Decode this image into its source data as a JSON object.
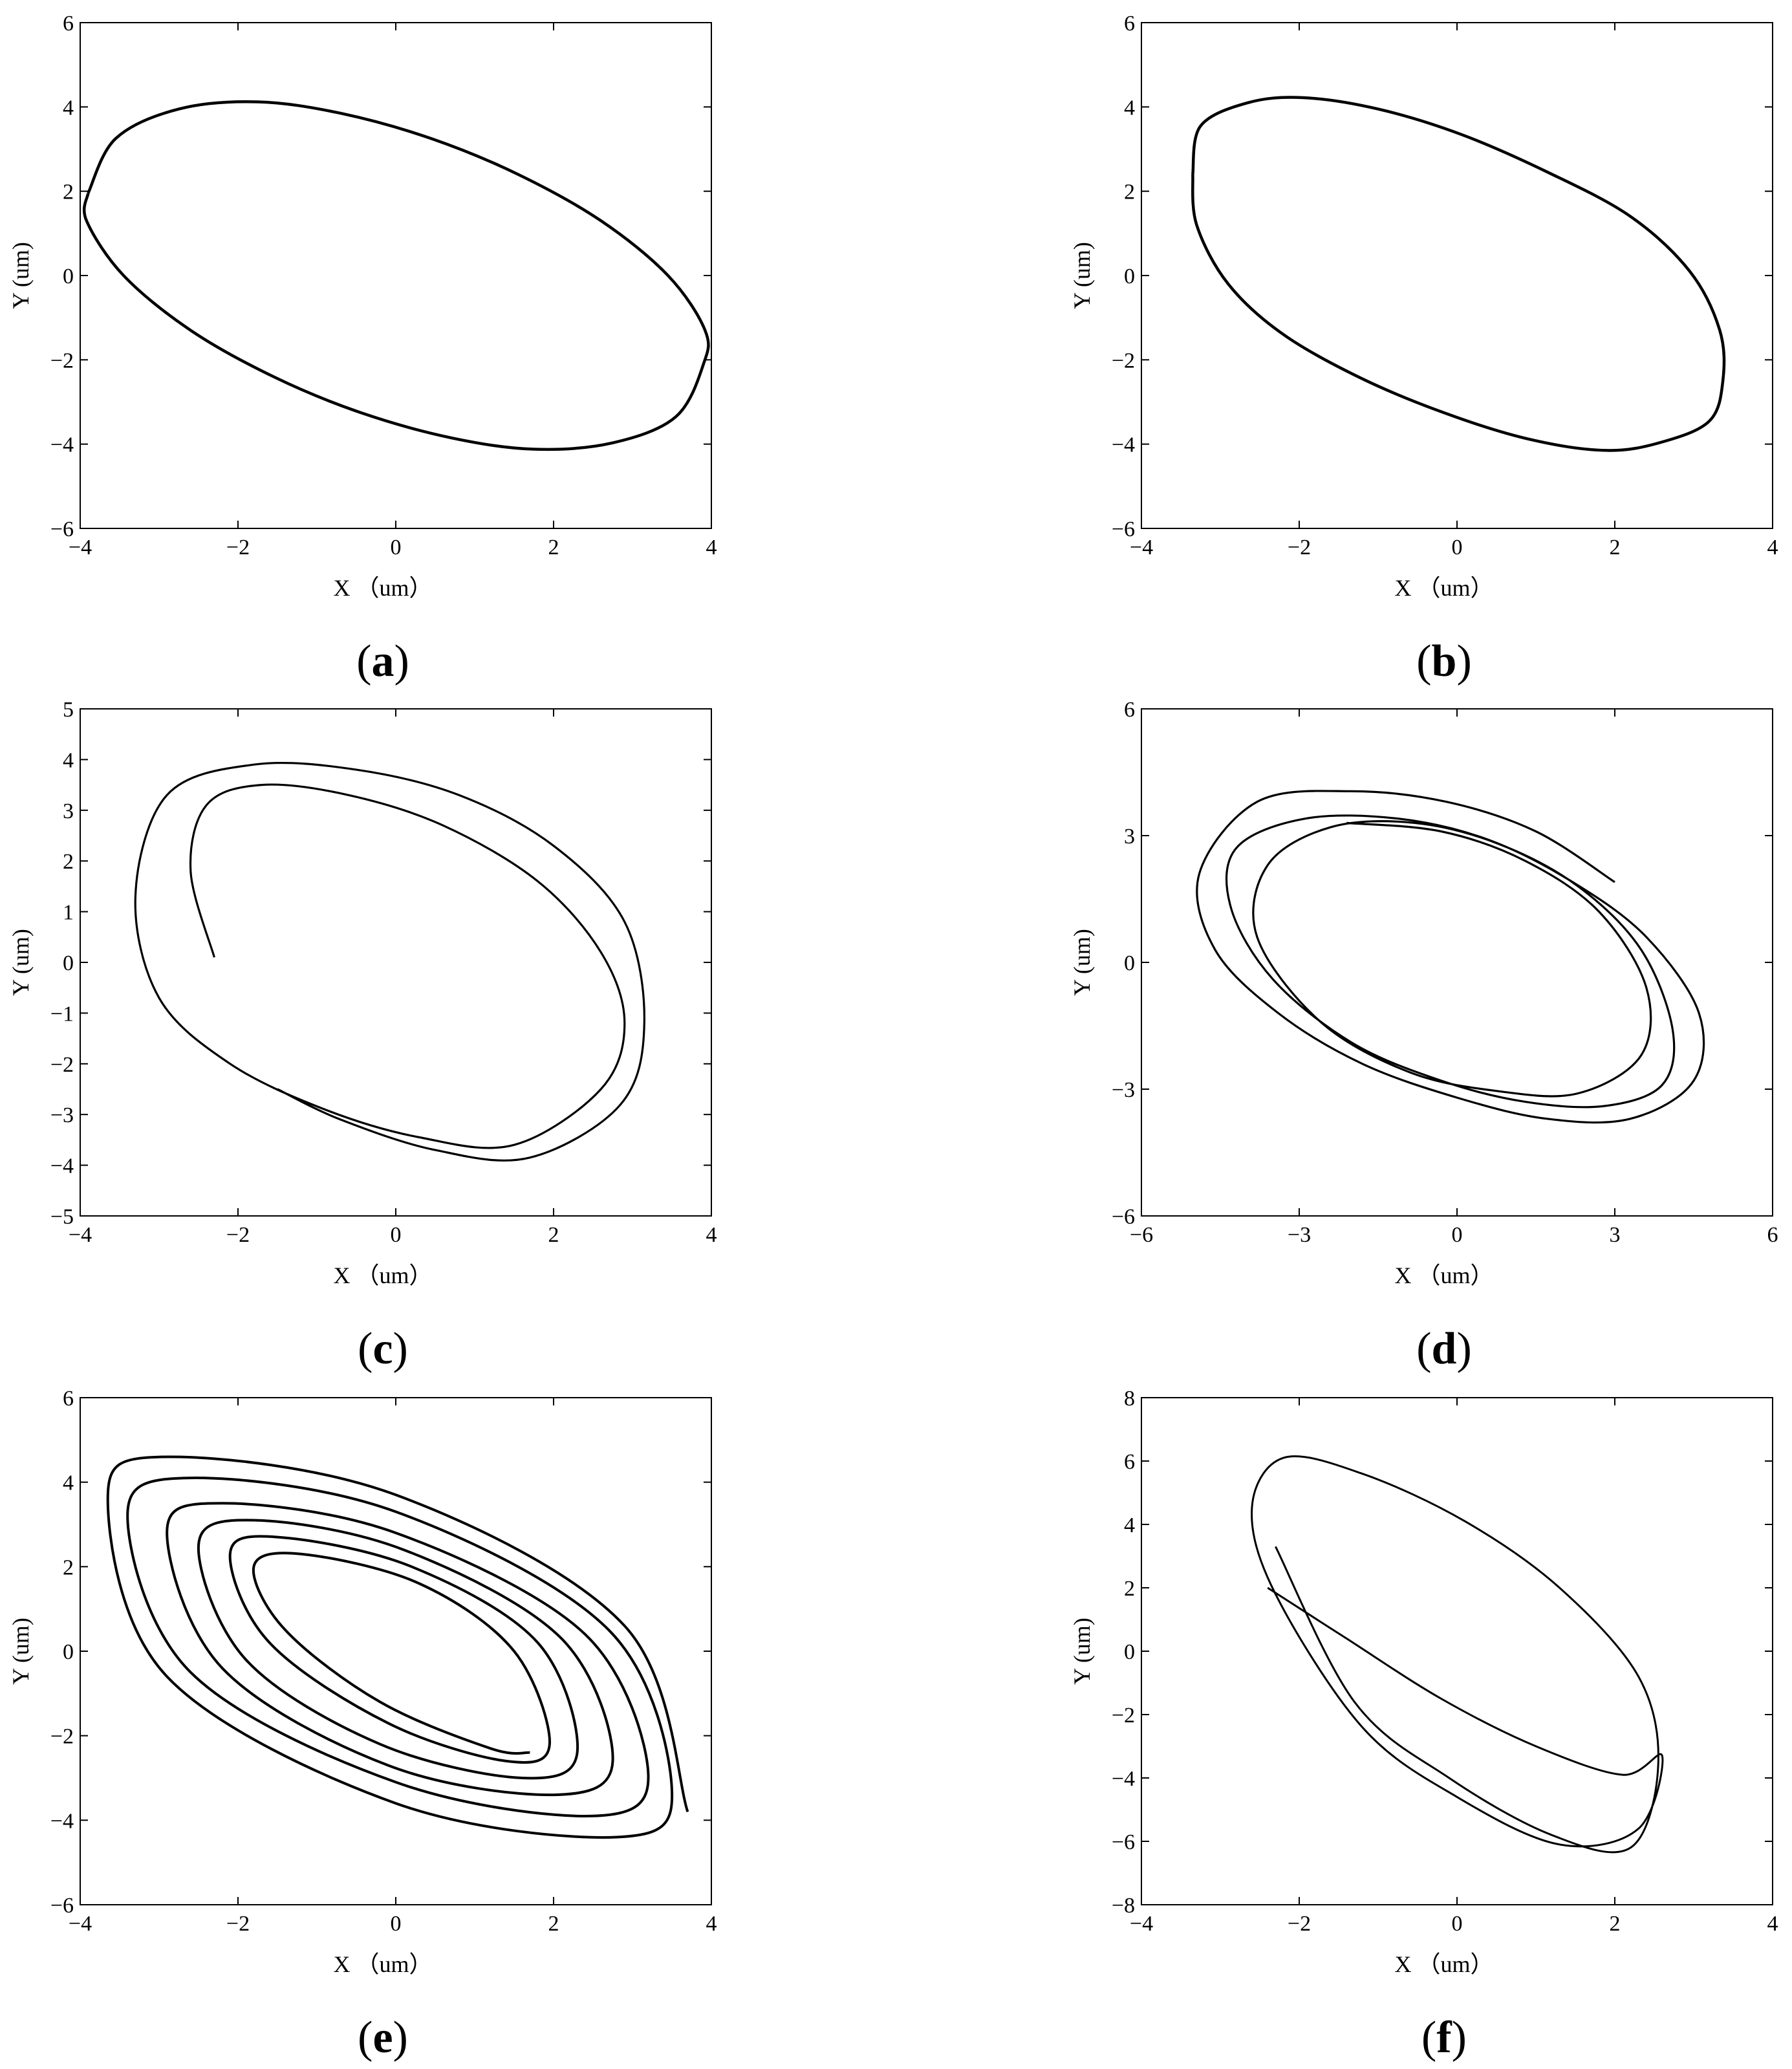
{
  "chart_data": [
    {
      "type": "line",
      "panel_label": "a",
      "xlabel": "X （um）",
      "ylabel": "Y (um)",
      "xlim": [
        -4,
        4
      ],
      "ylim": [
        -6,
        6
      ],
      "xticks": [
        -4,
        -2,
        0,
        2,
        4
      ],
      "yticks": [
        -6,
        -4,
        -2,
        0,
        2,
        4,
        6
      ],
      "grid": false,
      "series": [
        {
          "x": [
            -3.9,
            -3.55,
            -2.75,
            -1.75,
            -0.7,
            0.45,
            1.55,
            2.6,
            3.45,
            3.92,
            3.9,
            3.55,
            2.75,
            1.75,
            0.7,
            -0.45,
            -1.55,
            -2.6,
            -3.45,
            -3.92,
            -3.9
          ],
          "y": [
            1.95,
            3.25,
            3.95,
            4.12,
            3.85,
            3.25,
            2.4,
            1.3,
            0.0,
            -1.3,
            -2.1,
            -3.35,
            -3.97,
            -4.12,
            -3.85,
            -3.25,
            -2.4,
            -1.3,
            0.0,
            1.3,
            1.95
          ]
        }
      ]
    },
    {
      "type": "line",
      "panel_label": "b",
      "xlabel": "X （um）",
      "ylabel": "Y (um)",
      "xlim": [
        -4,
        4
      ],
      "ylim": [
        -6,
        6
      ],
      "xticks": [
        -4,
        -2,
        0,
        2,
        4
      ],
      "yticks": [
        -6,
        -4,
        -2,
        0,
        2,
        4,
        6
      ],
      "grid": false,
      "series": [
        {
          "x": [
            -3.35,
            -3.25,
            -2.65,
            -1.95,
            -1.0,
            0.05,
            1.15,
            2.2,
            2.95,
            3.33,
            3.37,
            3.2,
            2.6,
            1.9,
            0.95,
            -0.1,
            -1.2,
            -2.2,
            -2.9,
            -3.3,
            -3.35
          ],
          "y": [
            2.4,
            3.55,
            4.1,
            4.22,
            3.95,
            3.35,
            2.45,
            1.4,
            0.1,
            -1.3,
            -2.5,
            -3.45,
            -3.95,
            -4.15,
            -3.9,
            -3.3,
            -2.45,
            -1.4,
            -0.2,
            1.2,
            2.4
          ]
        }
      ]
    },
    {
      "type": "line",
      "panel_label": "c",
      "xlabel": "X （um）",
      "ylabel": "Y (um)",
      "xlim": [
        -4,
        4
      ],
      "ylim": [
        -5,
        5
      ],
      "xticks": [
        -4,
        -2,
        0,
        2,
        4
      ],
      "yticks": [
        -5,
        -4,
        -3,
        -2,
        -1,
        0,
        1,
        2,
        3,
        4,
        5
      ],
      "grid": false,
      "series": [
        {
          "x": [
            -2.3,
            -2.6,
            -2.4,
            -1.7,
            -0.6,
            0.6,
            1.8,
            2.6,
            2.9,
            2.6,
            1.5,
            0.3,
            -0.9,
            -2.1,
            -3.0,
            -3.3,
            -2.9,
            -1.8,
            -0.5,
            0.8,
            2.0,
            2.9,
            3.15,
            2.85,
            1.7,
            0.5,
            -0.7,
            -1.5
          ],
          "y": [
            0.1,
            1.8,
            3.1,
            3.5,
            3.3,
            2.7,
            1.6,
            0.2,
            -1.2,
            -2.5,
            -3.6,
            -3.45,
            -2.9,
            -2.0,
            -0.7,
            1.3,
            3.3,
            3.9,
            3.8,
            3.3,
            2.3,
            0.8,
            -1.2,
            -2.8,
            -3.85,
            -3.7,
            -3.1,
            -2.5
          ]
        }
      ]
    },
    {
      "type": "line",
      "panel_label": "d",
      "xlabel": "X （um）",
      "ylabel": "Y (um)",
      "xlim": [
        -6,
        6
      ],
      "ylim": [
        -6,
        6
      ],
      "xticks": [
        -6,
        -3,
        0,
        3,
        6
      ],
      "yticks": [
        -6,
        -3,
        0,
        3,
        6
      ],
      "grid": false,
      "series": [
        {
          "x": [
            -2.1,
            -0.3,
            1.3,
            2.7,
            3.6,
            3.5,
            2.3,
            0.8,
            -0.9,
            -2.6,
            -3.8,
            -3.6,
            -2.4,
            -0.8,
            0.8,
            2.3,
            3.5,
            4.1,
            3.9,
            2.8,
            1.3,
            -0.3,
            -2.0,
            -3.5,
            -4.3,
            -4.2,
            -2.9,
            -1.1,
            0.6,
            2.2,
            3.6,
            4.6,
            4.5,
            3.3,
            1.7,
            0.0,
            -1.8,
            -3.4,
            -4.6,
            -4.9,
            -3.8,
            -2.0,
            -0.2,
            1.5,
            3.0
          ],
          "y": [
            3.3,
            3.1,
            2.4,
            1.2,
            -0.6,
            -2.2,
            -3.1,
            -3.05,
            -2.6,
            -1.4,
            0.6,
            2.3,
            3.2,
            3.3,
            2.8,
            1.8,
            0.3,
            -1.6,
            -2.9,
            -3.4,
            -3.3,
            -2.8,
            -1.9,
            -0.4,
            1.3,
            2.7,
            3.4,
            3.4,
            2.9,
            1.9,
            0.6,
            -1.2,
            -2.8,
            -3.7,
            -3.7,
            -3.2,
            -2.4,
            -1.2,
            0.3,
            2.1,
            3.8,
            4.05,
            3.8,
            3.1,
            1.9
          ]
        }
      ]
    },
    {
      "type": "line",
      "panel_label": "e",
      "xlabel": "X （um）",
      "ylabel": "Y (um)",
      "xlim": [
        -4,
        4
      ],
      "ylim": [
        -6,
        6
      ],
      "xticks": [
        -4,
        -2,
        0,
        2,
        4
      ],
      "yticks": [
        -6,
        -4,
        -2,
        0,
        2,
        4,
        6
      ],
      "grid": false,
      "series": [
        {
          "x": [
            1.7,
            1.2,
            -0.2,
            -1.4,
            -1.8,
            -1.2,
            0.3,
            1.5,
            1.95,
            1.4,
            -0.1,
            -1.6,
            -2.1,
            -1.5,
            0.2,
            1.8,
            2.3,
            1.6,
            -0.2,
            -1.9,
            -2.5,
            -1.8,
            0.1,
            2.1,
            2.75,
            2.0,
            -0.1,
            -2.2,
            -2.9,
            -2.2,
            0.0,
            2.4,
            3.2,
            2.5,
            0.0,
            -2.6,
            -3.4,
            -2.6,
            0.0,
            2.7,
            3.5,
            2.8,
            0.0,
            -2.9,
            -3.65,
            -2.9,
            0.0,
            2.9,
            3.7
          ],
          "y": [
            -2.4,
            -2.3,
            -1.2,
            0.5,
            2.0,
            2.3,
            1.6,
            0.0,
            -2.2,
            -2.6,
            -1.7,
            0.2,
            2.3,
            2.7,
            2.0,
            0.2,
            -2.4,
            -3.0,
            -2.2,
            -0.2,
            2.5,
            3.1,
            2.4,
            0.3,
            -2.6,
            -3.4,
            -2.7,
            -0.4,
            2.8,
            3.5,
            2.8,
            0.4,
            -2.9,
            -3.9,
            -3.1,
            -0.5,
            3.2,
            4.1,
            3.3,
            0.5,
            -3.3,
            -4.4,
            -3.6,
            -0.6,
            3.6,
            4.6,
            3.7,
            0.6,
            -3.8
          ]
        }
      ]
    },
    {
      "type": "line",
      "panel_label": "f",
      "xlabel": "X （um）",
      "ylabel": "Y (um)",
      "xlim": [
        -4,
        4
      ],
      "ylim": [
        -8,
        8
      ],
      "xticks": [
        -4,
        -2,
        0,
        2,
        4
      ],
      "yticks": [
        -8,
        -6,
        -4,
        -2,
        0,
        2,
        4,
        6,
        8
      ],
      "grid": false,
      "series": [
        {
          "x": [
            -2.4,
            -1.4,
            -0.2,
            1.0,
            2.1,
            2.6,
            2.3,
            1.3,
            0.0,
            -1.2,
            -2.3,
            -2.6,
            -2.2,
            -1.2,
            0.1,
            1.3,
            2.3,
            2.55,
            2.2,
            1.2,
            -0.1,
            -1.3,
            -2.3
          ],
          "y": [
            2.0,
            0.4,
            -1.5,
            -3.0,
            -3.9,
            -3.3,
            -5.6,
            -6.1,
            -4.6,
            -2.4,
            1.8,
            4.5,
            6.1,
            5.6,
            4.1,
            2.0,
            -0.8,
            -3.6,
            -6.2,
            -5.8,
            -4.0,
            -1.6,
            3.3
          ]
        }
      ]
    }
  ]
}
